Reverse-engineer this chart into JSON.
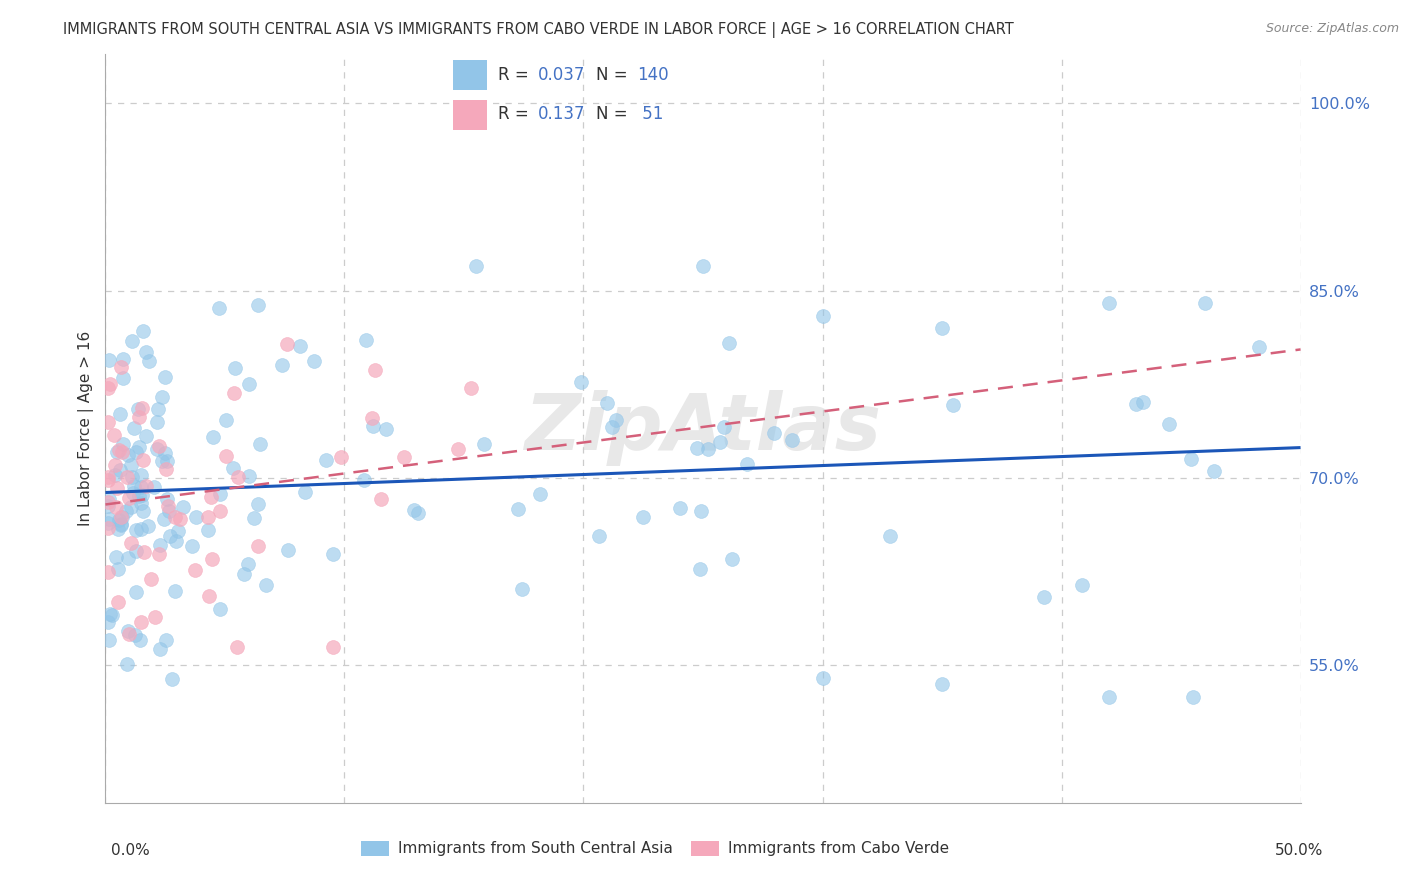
{
  "title": "IMMIGRANTS FROM SOUTH CENTRAL ASIA VS IMMIGRANTS FROM CABO VERDE IN LABOR FORCE | AGE > 16 CORRELATION CHART",
  "source": "Source: ZipAtlas.com",
  "ylabel": "In Labor Force | Age > 16",
  "ytick_values": [
    1.0,
    0.85,
    0.7,
    0.55
  ],
  "ytick_labels": [
    "100.0%",
    "85.0%",
    "70.0%",
    "55.0%"
  ],
  "xlim": [
    0.0,
    0.5
  ],
  "ylim": [
    0.44,
    1.04
  ],
  "blue_color": "#92C5E8",
  "pink_color": "#F5A8BB",
  "blue_line_color": "#1B56B8",
  "pink_line_color": "#D4607A",
  "legend_R_blue": "0.037",
  "legend_N_blue": "140",
  "legend_R_pink": "0.137",
  "legend_N_pink": "51",
  "label_blue": "Immigrants from South Central Asia",
  "label_pink": "Immigrants from Cabo Verde",
  "watermark": "ZipAtlas",
  "background_color": "#ffffff",
  "grid_color": "#cccccc",
  "axis_label_color": "#4472C4",
  "text_color": "#333333"
}
